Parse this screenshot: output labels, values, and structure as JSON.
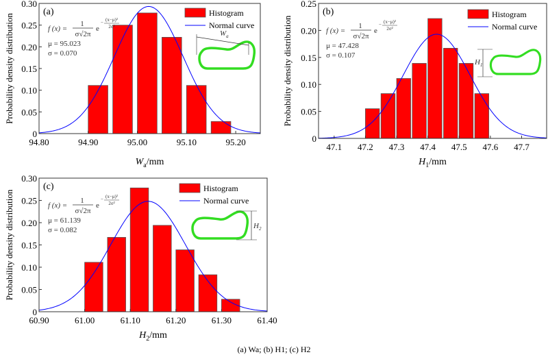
{
  "chart_data": [
    {
      "type": "bar",
      "panel_label": "(a)",
      "title": "",
      "xlabel_var": "W",
      "xlabel_sub": "a",
      "xlabel_unit": "/mm",
      "ylabel": "Probability density distribution",
      "xlim": [
        94.8,
        95.25
      ],
      "ylim": [
        0,
        0.3
      ],
      "xticks": [
        94.8,
        94.9,
        95.0,
        95.1,
        95.2
      ],
      "xtick_labels": [
        "94.80",
        "94.90",
        "95.00",
        "95.10",
        "95.20"
      ],
      "yticks": [
        0,
        0.05,
        0.1,
        0.15,
        0.2,
        0.25,
        0.3
      ],
      "ytick_labels": [
        "0",
        "0.05",
        "0.10",
        "0.15",
        "0.20",
        "0.25",
        "0.30"
      ],
      "bin_width": 0.05,
      "bins": [
        {
          "x0": 94.9,
          "x1": 94.94,
          "value": 0.111
        },
        {
          "x0": 94.95,
          "x1": 94.99,
          "value": 0.25
        },
        {
          "x0": 95.0,
          "x1": 95.04,
          "value": 0.278
        },
        {
          "x0": 95.05,
          "x1": 95.09,
          "value": 0.222
        },
        {
          "x0": 95.1,
          "x1": 95.14,
          "value": 0.111
        },
        {
          "x0": 95.15,
          "x1": 95.19,
          "value": 0.028
        }
      ],
      "curve": {
        "mu": 95.023,
        "sigma": 0.07,
        "peak": 0.293
      },
      "formula": "f(x) = 1/(σ√2π) e^(−(x−μ)²/2σ²)",
      "mu_label": "μ = 95.023",
      "sigma_label": "σ = 0.070",
      "legend": [
        "Histogram",
        "Normal curve"
      ],
      "legend_position": "top-right",
      "inset_label_var": "W",
      "inset_label_sub": "a",
      "grid": false
    },
    {
      "type": "bar",
      "panel_label": "(b)",
      "title": "",
      "xlabel_var": "H",
      "xlabel_sub": "1",
      "xlabel_unit": "/mm",
      "ylabel": "Probability density distribution",
      "xlim": [
        47.05,
        47.78
      ],
      "ylim": [
        0,
        0.25
      ],
      "xticks": [
        47.1,
        47.2,
        47.3,
        47.4,
        47.5,
        47.6,
        47.7
      ],
      "xtick_labels": [
        "47.1",
        "47.2",
        "47.3",
        "47.4",
        "47.5",
        "47.6",
        "47.7"
      ],
      "yticks": [
        0,
        0.05,
        0.1,
        0.15,
        0.2,
        0.25
      ],
      "ytick_labels": [
        "0",
        "0.05",
        "0.10",
        "0.15",
        "0.20",
        "0.25"
      ],
      "bin_width": 0.05,
      "bins": [
        {
          "x0": 47.2,
          "x1": 47.245,
          "value": 0.055
        },
        {
          "x0": 47.25,
          "x1": 47.295,
          "value": 0.083
        },
        {
          "x0": 47.3,
          "x1": 47.345,
          "value": 0.111
        },
        {
          "x0": 47.35,
          "x1": 47.395,
          "value": 0.139
        },
        {
          "x0": 47.4,
          "x1": 47.445,
          "value": 0.222
        },
        {
          "x0": 47.45,
          "x1": 47.495,
          "value": 0.167
        },
        {
          "x0": 47.5,
          "x1": 47.545,
          "value": 0.139
        },
        {
          "x0": 47.55,
          "x1": 47.595,
          "value": 0.083
        }
      ],
      "curve": {
        "mu": 47.428,
        "sigma": 0.107,
        "peak": 0.193
      },
      "formula": "f(x) = 1/(σ√2π) e^(−(x−μ)²/2σ²)",
      "mu_label": "μ = 47.428",
      "sigma_label": "σ = 0.107",
      "legend": [
        "Histogram",
        "Normal curve"
      ],
      "legend_position": "top-right",
      "inset_label_var": "H",
      "inset_label_sub": "1",
      "grid": false
    },
    {
      "type": "bar",
      "panel_label": "(c)",
      "title": "",
      "xlabel_var": "H",
      "xlabel_sub": "2",
      "xlabel_unit": "/mm",
      "ylabel": "Probability density distribution",
      "xlim": [
        60.9,
        61.4
      ],
      "ylim": [
        0,
        0.3
      ],
      "xticks": [
        60.9,
        61.0,
        61.1,
        61.2,
        61.3,
        61.4
      ],
      "xtick_labels": [
        "60.90",
        "61.00",
        "61.10",
        "61.20",
        "61.30",
        "61.40"
      ],
      "yticks": [
        0,
        0.05,
        0.1,
        0.15,
        0.2,
        0.25,
        0.3
      ],
      "ytick_labels": [
        "0",
        "0.05",
        "0.10",
        "0.15",
        "0.20",
        "0.25",
        "0.30"
      ],
      "bin_width": 0.05,
      "bins": [
        {
          "x0": 61.0,
          "x1": 61.04,
          "value": 0.111
        },
        {
          "x0": 61.05,
          "x1": 61.09,
          "value": 0.167
        },
        {
          "x0": 61.1,
          "x1": 61.14,
          "value": 0.278
        },
        {
          "x0": 61.15,
          "x1": 61.19,
          "value": 0.194
        },
        {
          "x0": 61.2,
          "x1": 61.24,
          "value": 0.139
        },
        {
          "x0": 61.25,
          "x1": 61.29,
          "value": 0.083
        },
        {
          "x0": 61.3,
          "x1": 61.34,
          "value": 0.028
        }
      ],
      "curve": {
        "mu": 61.139,
        "sigma": 0.082,
        "peak": 0.248
      },
      "formula": "f(x) = 1/(σ√2π) e^(−(x−μ)²/2σ²)",
      "mu_label": "μ = 61.139",
      "sigma_label": "σ = 0.082",
      "legend": [
        "Histogram",
        "Normal curve"
      ],
      "legend_position": "top-right",
      "inset_label_var": "H",
      "inset_label_sub": "2",
      "grid": false
    }
  ],
  "colors": {
    "bar_fill": "#ff0000",
    "bar_edge": "#555555",
    "curve": "#0000ff",
    "inset_shape": "#33dd22"
  },
  "caption": "(a) Wa; (b) H1; (c) H2"
}
